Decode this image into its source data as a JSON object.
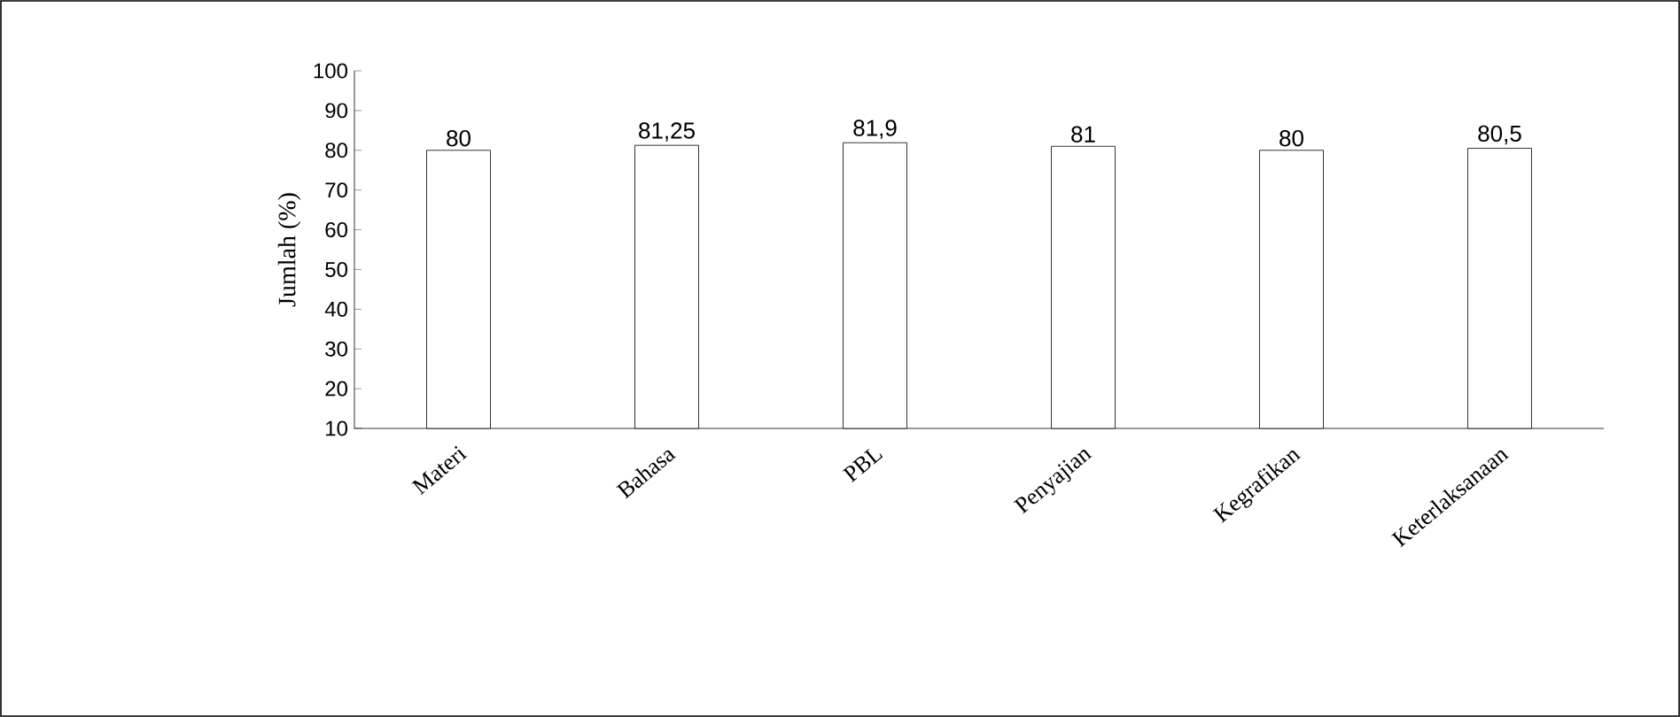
{
  "chart_data": {
    "type": "bar",
    "ylabel": "Jumlah (%)",
    "categories": [
      "Materi",
      "Bahasa",
      "PBL",
      "Penyajian",
      "Kegrafikan",
      "Keterlaksanaan"
    ],
    "values": [
      80,
      81.25,
      81.9,
      81,
      80,
      80.5
    ],
    "value_labels": [
      "80",
      "81,25",
      "81,9",
      "81",
      "80",
      "80,5"
    ],
    "color": "#000000",
    "ylim": [
      10,
      100
    ],
    "yticks": [
      10,
      20,
      30,
      40,
      50,
      60,
      70,
      80,
      90,
      100
    ],
    "grid": false
  }
}
